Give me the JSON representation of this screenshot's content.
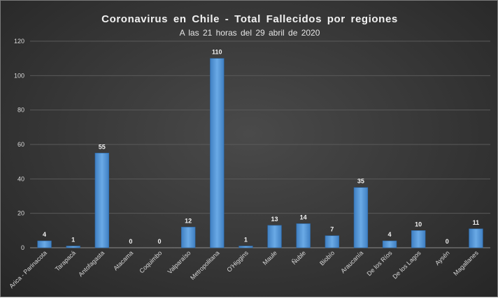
{
  "chart_data": {
    "type": "bar",
    "title": "Coronavirus en Chile - Total Fallecidos por regiones",
    "subtitle": "A las 21 horas del 29 abril de 2020",
    "xlabel": "",
    "ylabel": "",
    "ylim": [
      0,
      120
    ],
    "yticks": [
      "0",
      "20",
      "40",
      "60",
      "80",
      "100",
      "120"
    ],
    "grid": true,
    "legend": "none",
    "categories": [
      "Arica - Parinacota",
      "Tarapacá",
      "Antofagasta",
      "Atacama",
      "Coquimbo",
      "Valparaíso",
      "Metropolitana",
      "O'Higgins",
      "Maule",
      "Ñuble",
      "Biobío",
      "Araucanía",
      "De los Ríos",
      "De los Lagos",
      "Aysén",
      "Magallanes"
    ],
    "values": [
      4,
      1,
      55,
      0,
      0,
      12,
      110,
      1,
      13,
      14,
      7,
      35,
      4,
      10,
      0,
      11
    ],
    "value_labels": [
      "4",
      "1",
      "55",
      "0",
      "0",
      "12",
      "110",
      "1",
      "13",
      "14",
      "7",
      "35",
      "4",
      "10",
      "0",
      "11"
    ],
    "bar_color": "#5b9bd5",
    "background_color": "#3a3a3a",
    "text_color": "#d9d9d9"
  }
}
